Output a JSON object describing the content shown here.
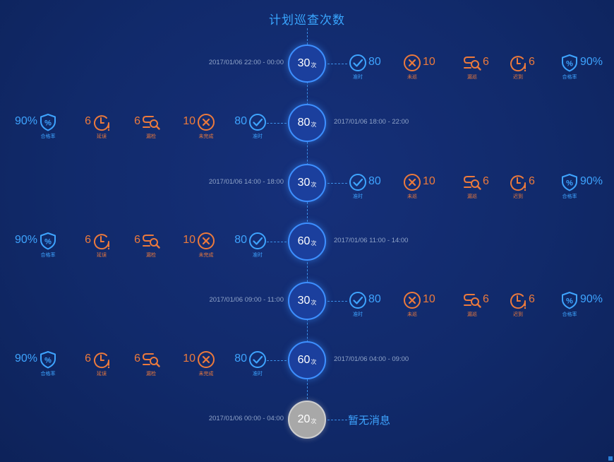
{
  "title": "计划巡查次数",
  "unit": "次",
  "colors": {
    "blue": "#3ea4ff",
    "orange": "#ec7a3c",
    "node": "#1b3f9d",
    "node_empty": "#a8a8a8"
  },
  "rows": [
    {
      "count": "30",
      "time": "2017/01/06  22:00 - 00:00",
      "side": "right",
      "stats": {
        "ontime": "80",
        "ontime_label": "准时",
        "miss": "10",
        "miss_label": "未巡",
        "skip": "6",
        "skip_label": "漏巡",
        "late": "6",
        "late_label": "迟到",
        "rate": "90%",
        "rate_label": "合格率"
      }
    },
    {
      "count": "80",
      "time": "2017/01/06  18:00 - 22:00",
      "side": "left",
      "stats": {
        "ontime": "80",
        "ontime_label": "准时",
        "miss": "10",
        "miss_label": "未完成",
        "skip": "6",
        "skip_label": "漏检",
        "late": "6",
        "late_label": "延误",
        "rate": "90%",
        "rate_label": "合格率"
      }
    },
    {
      "count": "30",
      "time": "2017/01/06  14:00 - 18:00",
      "side": "right",
      "stats": {
        "ontime": "80",
        "ontime_label": "准时",
        "miss": "10",
        "miss_label": "未巡",
        "skip": "6",
        "skip_label": "漏巡",
        "late": "6",
        "late_label": "迟到",
        "rate": "90%",
        "rate_label": "合格率"
      }
    },
    {
      "count": "60",
      "time": "2017/01/06  11:00 - 14:00",
      "side": "left",
      "stats": {
        "ontime": "80",
        "ontime_label": "准时",
        "miss": "10",
        "miss_label": "未完成",
        "skip": "6",
        "skip_label": "漏检",
        "late": "6",
        "late_label": "延误",
        "rate": "90%",
        "rate_label": "合格率"
      }
    },
    {
      "count": "30",
      "time": "2017/01/06  09:00 - 11:00",
      "side": "right",
      "stats": {
        "ontime": "80",
        "ontime_label": "准时",
        "miss": "10",
        "miss_label": "未巡",
        "skip": "6",
        "skip_label": "漏巡",
        "late": "6",
        "late_label": "迟到",
        "rate": "90%",
        "rate_label": "合格率"
      }
    },
    {
      "count": "60",
      "time": "2017/01/06  04:00 - 09:00",
      "side": "left",
      "stats": {
        "ontime": "80",
        "ontime_label": "准时",
        "miss": "10",
        "miss_label": "未完成",
        "skip": "6",
        "skip_label": "漏检",
        "late": "6",
        "late_label": "延误",
        "rate": "90%",
        "rate_label": "合格率"
      }
    },
    {
      "count": "20",
      "time": "2017/01/06  00:00 - 04:00",
      "side": "empty",
      "message": "暂无消息"
    }
  ]
}
